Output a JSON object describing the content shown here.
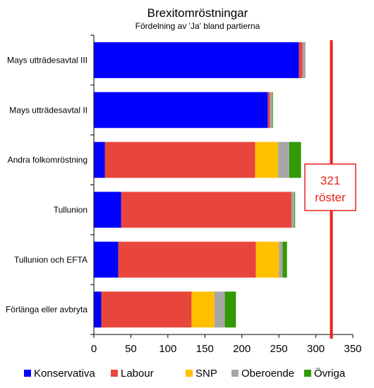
{
  "chart_data": {
    "type": "bar",
    "orientation": "horizontal",
    "stacked": true,
    "title": "Brexitomröstningar",
    "subtitle": "Fördelning  av 'Ja'  bland  partierna",
    "categories": [
      "Mays utträdesavtal III",
      "Mays utträdesavtal II",
      "Andra folkomröstning",
      "Tullunion",
      "Tullunion och EFTA",
      "Förlänga eller avbryta"
    ],
    "series": [
      {
        "name": "Konservativa",
        "color": "#0000ff",
        "values": [
          277,
          235,
          15,
          37,
          33,
          10
        ]
      },
      {
        "name": "Labour",
        "color": "#e8463c",
        "values": [
          5,
          3,
          203,
          230,
          186,
          122
        ]
      },
      {
        "name": "SNP",
        "color": "#ffc000",
        "values": [
          0,
          0,
          31,
          0,
          31,
          31
        ]
      },
      {
        "name": "Oberoende",
        "color": "#a6a6a6",
        "values": [
          4,
          3,
          15,
          4,
          5,
          14
        ]
      },
      {
        "name": "Övriga",
        "color": "#339900",
        "values": [
          0,
          1,
          16,
          1,
          6,
          15
        ]
      }
    ],
    "xlim": [
      0,
      350
    ],
    "xticks": [
      "0",
      "50",
      "100",
      "150",
      "200",
      "250",
      "300",
      "350"
    ],
    "grid": false,
    "legend_position": "bottom",
    "reference_line": {
      "value": 321,
      "color": "#e8231d"
    },
    "annotation": {
      "line1": "321",
      "line2": "röster"
    }
  }
}
